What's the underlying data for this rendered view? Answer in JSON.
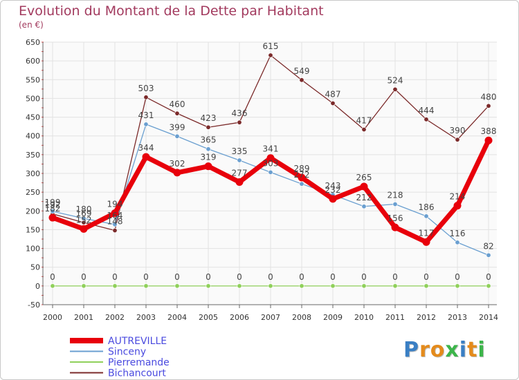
{
  "header": {
    "title": "Evolution du Montant de la Dette par Habitant",
    "unit": "(en €)"
  },
  "logo": {
    "text": "Proxiti",
    "colors": [
      "#3a7fc4",
      "#e48b1c",
      "#e48b1c",
      "#3cb54a",
      "#3a7fc4",
      "#e48b1c",
      "#3cb54a"
    ]
  },
  "chart_data": {
    "type": "line",
    "title": "Evolution du Montant de la Dette par Habitant",
    "ylabel": "(en €)",
    "x": [
      2000,
      2001,
      2002,
      2003,
      2004,
      2005,
      2006,
      2007,
      2008,
      2009,
      2010,
      2011,
      2012,
      2013,
      2014
    ],
    "ylim": [
      -50,
      650
    ],
    "yticks": [
      -50,
      0,
      50,
      100,
      150,
      200,
      250,
      300,
      350,
      400,
      450,
      500,
      550,
      600,
      650
    ],
    "grid": true,
    "legend": "bottom-left",
    "series": [
      {
        "name": "AUTREVILLE",
        "color": "#e8000b",
        "width": 7,
        "values": [
          182,
          152,
          194,
          344,
          302,
          319,
          277,
          341,
          289,
          232,
          265,
          156,
          117,
          214,
          388
        ]
      },
      {
        "name": "Sinceny",
        "color": "#6a9fd0",
        "width": 1.3,
        "values": [
          199,
          180,
          164,
          431,
          399,
          365,
          335,
          303,
          272,
          243,
          212,
          218,
          186,
          116,
          82
        ]
      },
      {
        "name": "Pierremande",
        "color": "#8fd05a",
        "width": 1.3,
        "values": [
          0,
          0,
          0,
          0,
          0,
          0,
          0,
          0,
          0,
          0,
          0,
          0,
          0,
          0,
          0
        ]
      },
      {
        "name": "Bichancourt",
        "color": "#7b2a2a",
        "width": 1.3,
        "values": [
          192,
          169,
          148,
          503,
          460,
          423,
          436,
          615,
          549,
          487,
          417,
          524,
          444,
          390,
          480
        ]
      }
    ]
  }
}
